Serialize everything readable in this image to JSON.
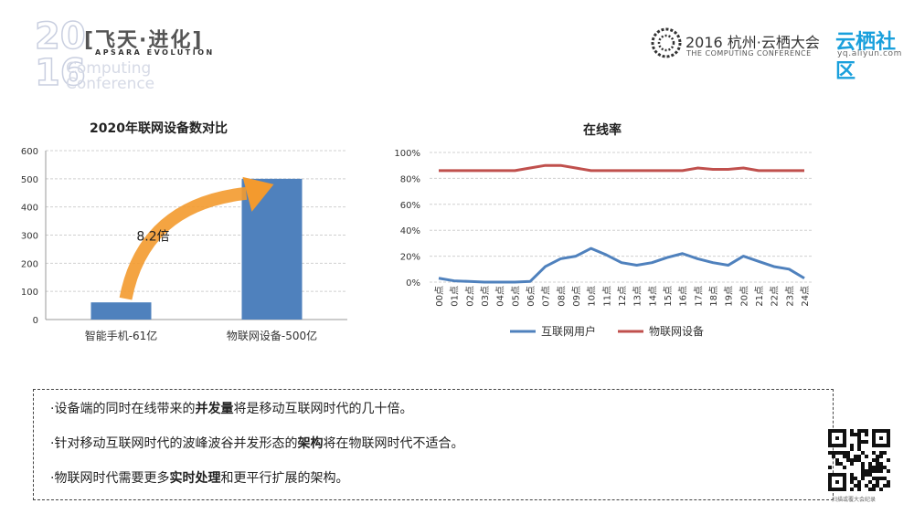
{
  "header": {
    "year_top": "20",
    "year_bottom": "16",
    "brand_cn": "[飞天·进化]",
    "brand_en": "APSARA EVOLUTION",
    "logo_sub1": "Computing",
    "logo_sub2": "Conference",
    "conference_title": "2016 杭州·云栖大会",
    "conference_subtitle": "THE COMPUTING CONFERENCE",
    "community_title": "云栖社区",
    "community_url": "yq.aliyun.com"
  },
  "colors": {
    "bar": "#4f81bd",
    "internet_users": "#4f81bd",
    "iot_devices": "#c0504d",
    "arrow": "#f39a2e"
  },
  "chart_data": [
    {
      "type": "bar",
      "title": "2020年联网设备数对比",
      "categories": [
        "智能手机-61亿",
        "物联网设备-500亿"
      ],
      "values": [
        61,
        500
      ],
      "ylim": [
        0,
        600
      ],
      "yticks": [
        "0",
        "100",
        "200",
        "300",
        "400",
        "500",
        "600"
      ],
      "annotation": "8.2倍",
      "grid": true
    },
    {
      "type": "line",
      "title": "在线率",
      "x": [
        "00点",
        "01点",
        "02点",
        "03点",
        "04点",
        "05点",
        "06点",
        "07点",
        "08点",
        "09点",
        "10点",
        "11点",
        "12点",
        "13点",
        "14点",
        "15点",
        "16点",
        "17点",
        "18点",
        "19点",
        "20点",
        "21点",
        "22点",
        "23点",
        "24点"
      ],
      "series": [
        {
          "name": "互联网用户",
          "values": [
            3,
            1,
            0.5,
            0,
            0,
            0,
            0.5,
            12,
            18,
            20,
            26,
            21,
            15,
            13,
            15,
            19,
            22,
            18,
            15,
            13,
            20,
            16,
            12,
            10,
            3
          ]
        },
        {
          "name": "物联网设备",
          "values": [
            86,
            86,
            86,
            86,
            86,
            86,
            88,
            90,
            90,
            88,
            86,
            86,
            86,
            86,
            86,
            86,
            86,
            88,
            87,
            87,
            88,
            86,
            86,
            86,
            86
          ]
        }
      ],
      "ylim": [
        0,
        100
      ],
      "yticks": [
        "0%",
        "20%",
        "40%",
        "60%",
        "80%",
        "100%"
      ],
      "legend": "bottom",
      "grid": true
    }
  ],
  "notes": [
    {
      "before": "设备端的同时在线带来的",
      "bold": "并发量",
      "after": "将是移动互联网时代的几十倍。"
    },
    {
      "before": "针对移动互联网时代的波峰波谷并发形态的",
      "bold": "架构",
      "after": "将在物联网时代不适合。"
    },
    {
      "before": "物联网时代需要更多",
      "bold": "实时处理",
      "after": "和更平行扩展的架构。"
    }
  ],
  "qr_caption": "扫描或覆大会纪录"
}
